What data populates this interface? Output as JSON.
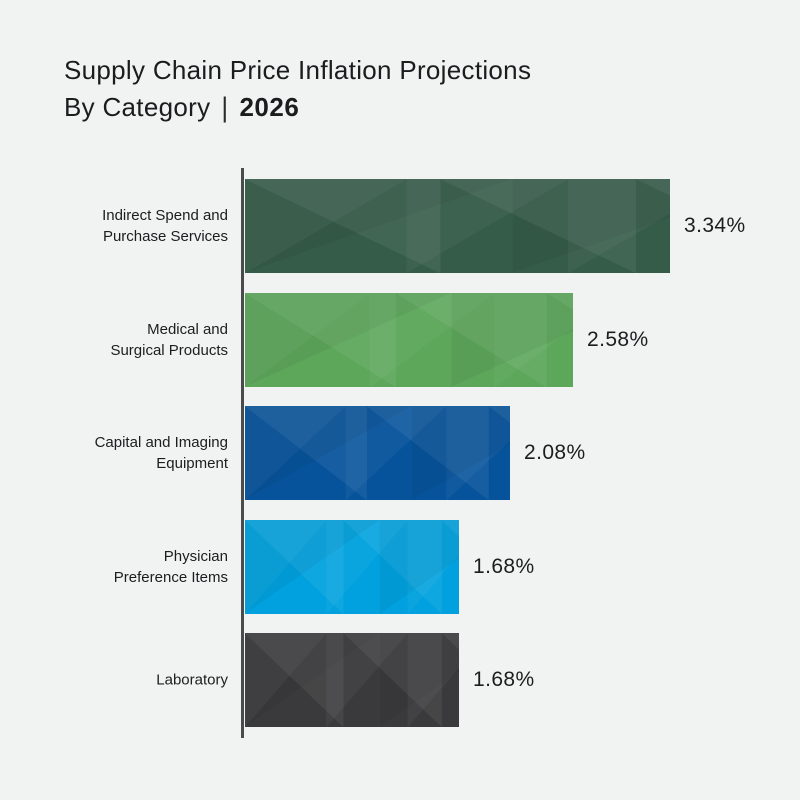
{
  "title": {
    "line1": "Supply Chain Price Inflation Projections",
    "line2_prefix": "By Category",
    "line2_separator": "|",
    "line2_year": "2026"
  },
  "colors": {
    "background": "#f1f2f2",
    "axis": "#4a4b4d",
    "text": "#1c1c1e"
  },
  "chart_data": {
    "type": "bar",
    "orientation": "horizontal",
    "title": "Supply Chain Price Inflation Projections By Category | 2026",
    "xlabel": "",
    "ylabel": "",
    "unit": "%",
    "xlim": [
      0,
      3.6
    ],
    "grid": false,
    "legend": false,
    "categories": [
      "Indirect Spend and Purchase Services",
      "Medical and Surgical Products",
      "Capital and Imaging Equipment",
      "Physician Preference Items",
      "Laboratory"
    ],
    "values": [
      3.34,
      2.58,
      2.08,
      1.68,
      1.68
    ],
    "value_labels": [
      "3.34%",
      "2.58%",
      "2.08%",
      "1.68%",
      "1.68%"
    ],
    "rows": [
      {
        "label": "Indirect Spend and\nPurchase Services",
        "value": 3.34,
        "value_label": "3.34%",
        "color": "#355c49"
      },
      {
        "label": "Medical and\nSurgical Products",
        "value": 2.58,
        "value_label": "2.58%",
        "color": "#5da75b"
      },
      {
        "label": "Capital and Imaging\nEquipment",
        "value": 2.08,
        "value_label": "2.08%",
        "color": "#07539b"
      },
      {
        "label": "Physician\nPreference Items",
        "value": 1.68,
        "value_label": "1.68%",
        "color": "#00a1de"
      },
      {
        "label": "Laboratory",
        "value": 1.68,
        "value_label": "1.68%",
        "color": "#3a3a3c"
      }
    ]
  }
}
